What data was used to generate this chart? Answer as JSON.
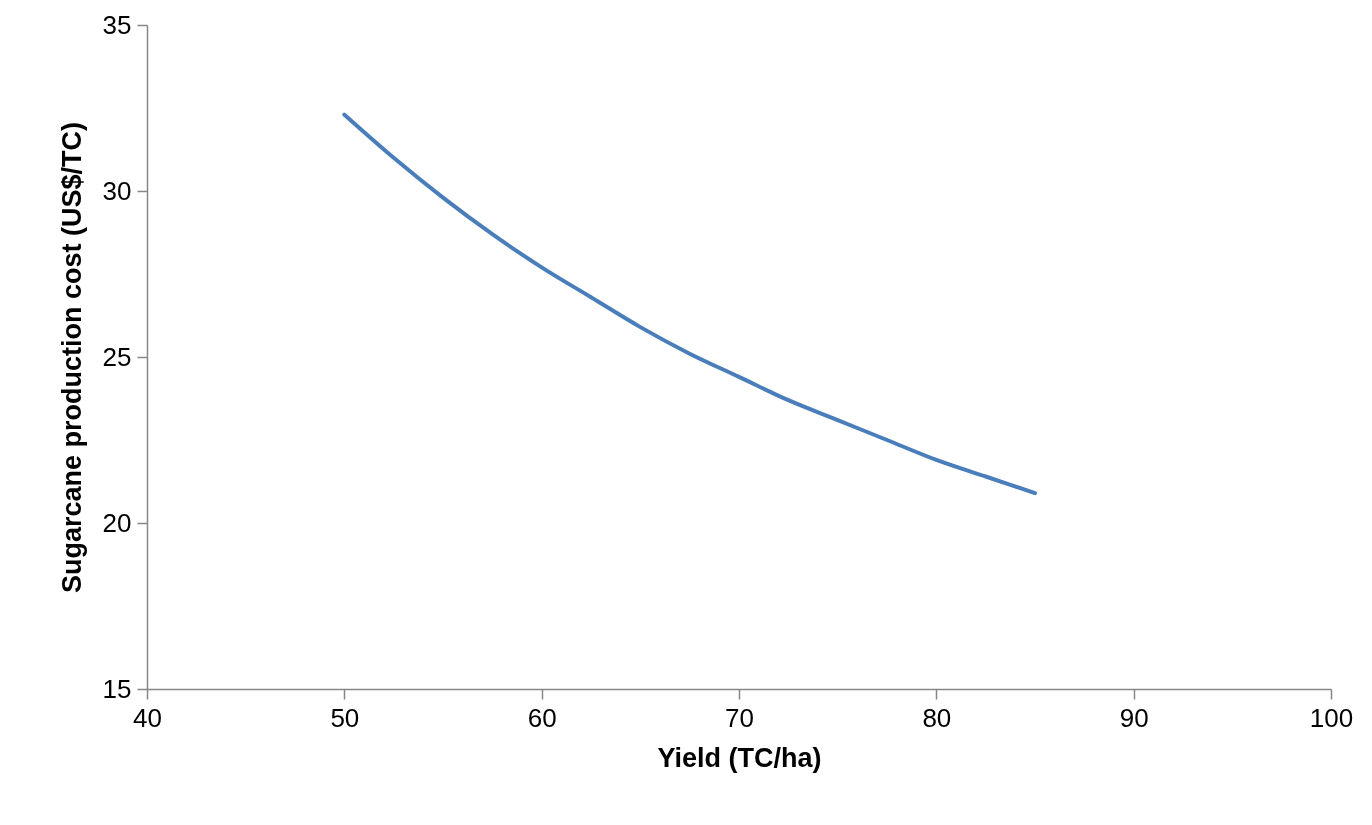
{
  "chart_data": {
    "type": "line",
    "xlabel": "Yield (TC/ha)",
    "ylabel": "Sugarcane production cost (US$/TC)",
    "x": [
      50,
      52.5,
      55,
      57.5,
      60,
      62.5,
      65,
      67.5,
      70,
      72.5,
      75,
      77.5,
      80,
      82.5,
      85
    ],
    "series": [
      {
        "color": "#4a7ebb",
        "values": [
          32.3,
          31.0,
          29.8,
          28.7,
          27.7,
          26.8,
          25.9,
          25.1,
          24.4,
          23.7,
          23.1,
          22.5,
          21.9,
          21.4,
          20.9
        ]
      }
    ],
    "xlim": [
      40,
      100
    ],
    "xticks": [
      40,
      50,
      60,
      70,
      80,
      90,
      100
    ],
    "ylim": [
      15,
      35
    ],
    "yticks": [
      15,
      20,
      25,
      30,
      35
    ],
    "grid": false,
    "marker": "none",
    "line_style": "solid"
  }
}
